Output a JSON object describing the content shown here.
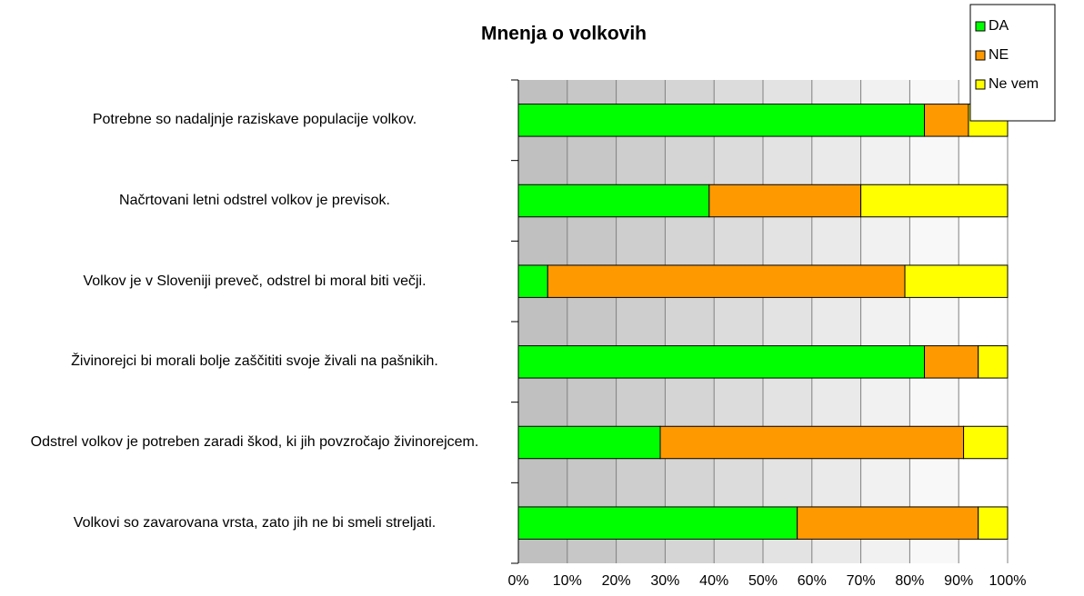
{
  "chart_data": {
    "type": "stacked_barh",
    "title": "Mnenja o volkovih",
    "categories": [
      "Potrebne so nadaljnje raziskave populacije volkov.",
      "Načrtovani letni odstrel volkov je previsok.",
      "Volkov je v Sloveniji preveč, odstrel bi moral biti večji.",
      "Živinorejci bi morali bolje zaščititi svoje živali na pašnikih.",
      "Odstrel volkov je potreben zaradi škod, ki jih povzročajo živinorejcem.",
      "Volkovi so zavarovana vrsta, zato jih ne bi smeli streljati."
    ],
    "series": [
      {
        "name": "DA",
        "color": "#00ff00",
        "values": [
          83,
          39,
          6,
          83,
          29,
          57
        ]
      },
      {
        "name": "NE",
        "color": "#ff9900",
        "values": [
          9,
          31,
          73,
          11,
          62,
          37
        ]
      },
      {
        "name": "Ne vem",
        "color": "#ffff00",
        "values": [
          8,
          30,
          21,
          6,
          9,
          6
        ]
      }
    ],
    "xlim": [
      0,
      100
    ],
    "xticks": [
      {
        "value": 0,
        "label": "0%"
      },
      {
        "value": 10,
        "label": "10%"
      },
      {
        "value": 20,
        "label": "20%"
      },
      {
        "value": 30,
        "label": "30%"
      },
      {
        "value": 40,
        "label": "40%"
      },
      {
        "value": 50,
        "label": "50%"
      },
      {
        "value": 60,
        "label": "60%"
      },
      {
        "value": 70,
        "label": "70%"
      },
      {
        "value": 80,
        "label": "80%"
      },
      {
        "value": 90,
        "label": "90%"
      },
      {
        "value": 100,
        "label": "100%"
      }
    ],
    "grid": true,
    "legend": "top-right"
  }
}
